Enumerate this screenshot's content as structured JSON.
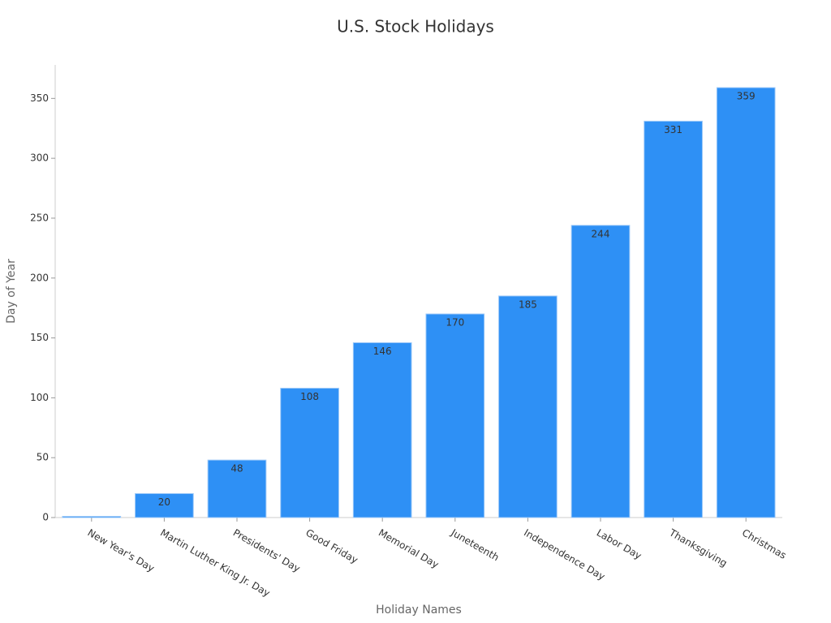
{
  "chart_data": {
    "type": "bar",
    "title": "U.S. Stock Holidays",
    "x_label": "Holiday Names",
    "y_label": "Day of Year",
    "categories": [
      "New Year's Day",
      "Martin Luther King Jr. Day",
      "Presidents' Day",
      "Good Friday",
      "Memorial Day",
      "Juneteenth",
      "Independence Day",
      "Labor Day",
      "Thanksgiving",
      "Christmas"
    ],
    "values": [
      1,
      20,
      48,
      108,
      146,
      170,
      185,
      244,
      331,
      359
    ],
    "color": "#2e90f5",
    "ylim": [
      0,
      378
    ],
    "yticks": [
      0,
      50,
      100,
      150,
      200,
      250,
      300,
      350
    ],
    "grid": false
  }
}
